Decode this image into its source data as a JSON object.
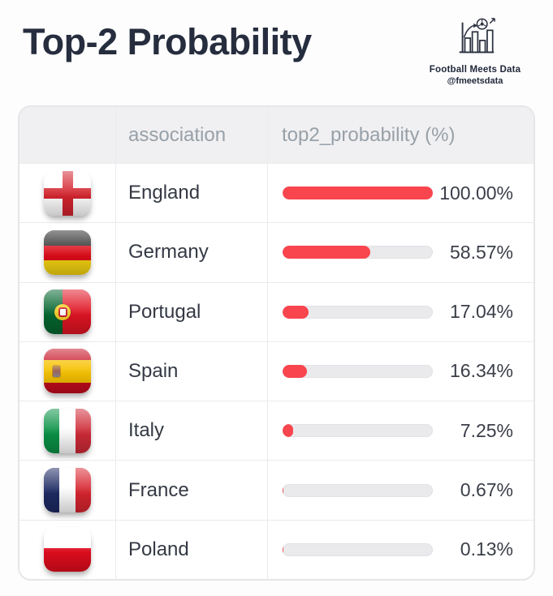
{
  "title": "Top-2 Probability",
  "logo": {
    "name": "Football Meets Data",
    "handle": "@fmeetsdata"
  },
  "table": {
    "columns": [
      "",
      "association",
      "top2_probability (%)"
    ],
    "rows": [
      {
        "flag": "england",
        "association": "England",
        "value": 100.0,
        "display": "100.00%"
      },
      {
        "flag": "germany",
        "association": "Germany",
        "value": 58.57,
        "display": "58.57%"
      },
      {
        "flag": "portugal",
        "association": "Portugal",
        "value": 17.04,
        "display": "17.04%"
      },
      {
        "flag": "spain",
        "association": "Spain",
        "value": 16.34,
        "display": "16.34%"
      },
      {
        "flag": "italy",
        "association": "Italy",
        "value": 7.25,
        "display": "7.25%"
      },
      {
        "flag": "france",
        "association": "France",
        "value": 0.67,
        "display": "0.67%"
      },
      {
        "flag": "poland",
        "association": "Poland",
        "value": 0.13,
        "display": "0.13%"
      }
    ]
  },
  "chart_data": {
    "type": "bar",
    "orientation": "horizontal",
    "title": "Top-2 Probability",
    "categories": [
      "England",
      "Germany",
      "Portugal",
      "Spain",
      "Italy",
      "France",
      "Poland"
    ],
    "values": [
      100.0,
      58.57,
      17.04,
      16.34,
      7.25,
      0.67,
      0.13
    ],
    "value_labels": [
      "100.00%",
      "58.57%",
      "17.04%",
      "16.34%",
      "7.25%",
      "0.67%",
      "0.13%"
    ],
    "xlabel": "top2_probability (%)",
    "ylabel": "association",
    "xlim": [
      0,
      100
    ],
    "bar_color": "#f8454e",
    "track_color": "#eaeaed",
    "legend": "none",
    "grid": "off"
  },
  "colors": {
    "accent_red": "#f8454e",
    "track_gray": "#eaeaed",
    "title_navy": "#262d3e",
    "header_text": "#98a0a8",
    "header_bg": "#f0f0f2",
    "border": "#e6e6e9"
  }
}
